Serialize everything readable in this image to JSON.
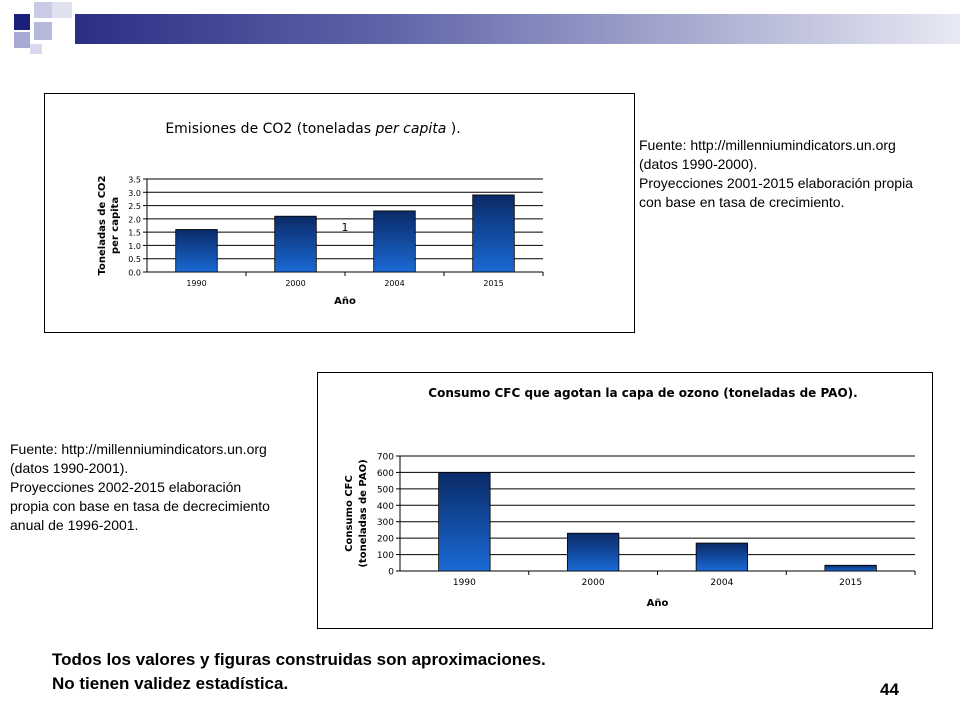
{
  "slide": {
    "page_number": "44",
    "disclaimer": [
      "Todos los valores y figuras construidas son aproximaciones.",
      "No tienen validez estadística."
    ],
    "colors": {
      "bar_top": "#0a2a66",
      "bar_bottom": "#1a6ad6",
      "header_gradient_start": "#2a2f85",
      "header_gradient_end": "#e8e9f3"
    }
  },
  "source_notes": {
    "co2": [
      "Fuente: http://millenniumindicators.un.org",
      "(datos 1990-2000).",
      "Proyecciones 2001-2015 elaboración propia",
      "con base en tasa de crecimiento."
    ],
    "cfc": [
      "Fuente: http://millenniumindicators.un.org",
      "(datos 1990-2001).",
      "Proyecciones 2002-2015 elaboración",
      "propia con base en tasa de decrecimiento",
      "anual de 1996-2001."
    ]
  },
  "chart_data": [
    {
      "type": "bar",
      "title_main": "Emisiones de CO2 (toneladas ",
      "title_italic": "per capita",
      "title_end": " ).",
      "xlabel": "Año",
      "ylabel_lines": [
        "Toneladas de CO2",
        "per capita"
      ],
      "categories": [
        "1990",
        "2000",
        "2004",
        "2015"
      ],
      "values": [
        1.6,
        2.1,
        2.3,
        2.9
      ],
      "ylim": [
        0,
        3.5
      ],
      "yticks": [
        "0.0",
        "0.5",
        "1.0",
        "1.5",
        "2.0",
        "2.5",
        "3.0",
        "3.5"
      ],
      "annotation": "1",
      "grid": true
    },
    {
      "type": "bar",
      "title": "Consumo CFC que agotan la capa de ozono (toneladas de PAO).",
      "xlabel": "Año",
      "ylabel_lines": [
        "Consumo CFC",
        "(toneladas de PAO)"
      ],
      "categories": [
        "1990",
        "2000",
        "2004",
        "2015"
      ],
      "values": [
        600,
        230,
        170,
        35
      ],
      "ylim": [
        0,
        700
      ],
      "yticks": [
        "0",
        "100",
        "200",
        "300",
        "400",
        "500",
        "600",
        "700"
      ],
      "grid": true
    }
  ]
}
